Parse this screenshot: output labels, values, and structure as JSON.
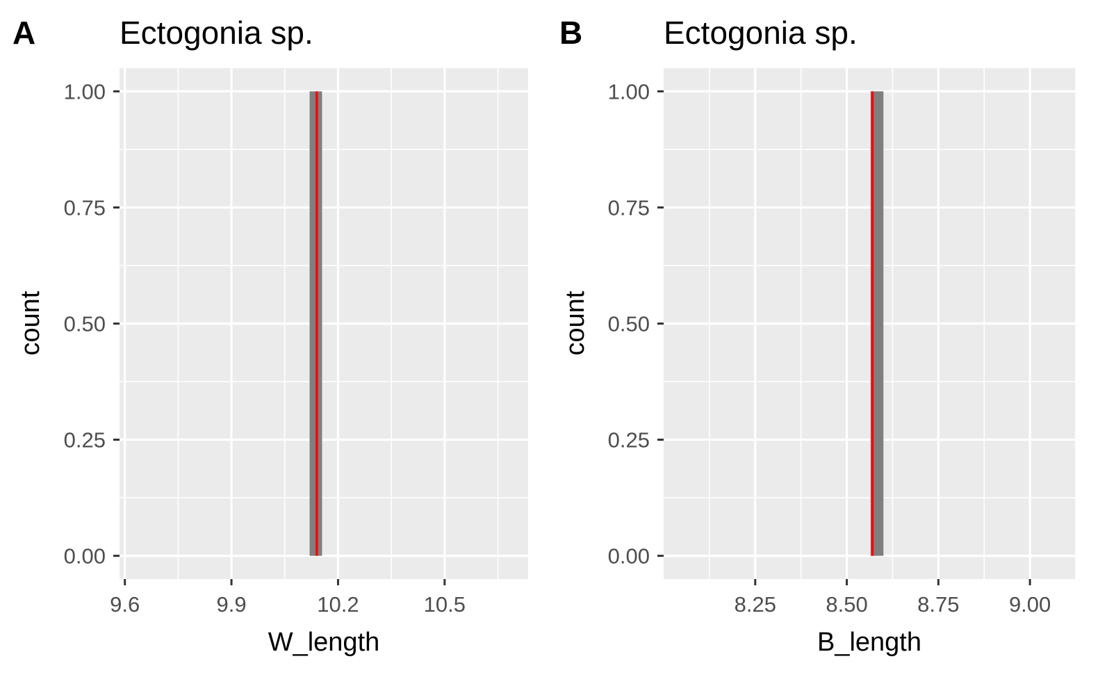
{
  "chart_data": [
    {
      "type": "bar",
      "panel": "A",
      "title": "Ectogonia sp.",
      "xlabel": "W_length",
      "ylabel": "count",
      "xlim": [
        9.585,
        10.735
      ],
      "ylim": [
        -0.05,
        1.05
      ],
      "x_ticks": [
        9.6,
        9.9,
        10.2,
        10.5
      ],
      "x_tick_labels": [
        "9.6",
        "9.9",
        "10.2",
        "10.5"
      ],
      "y_ticks": [
        0.0,
        0.25,
        0.5,
        0.75,
        1.0
      ],
      "y_tick_labels": [
        "0.00",
        "0.25",
        "0.50",
        "0.75",
        "1.00"
      ],
      "bars": [
        {
          "xmin": 10.12,
          "xmax": 10.155,
          "count": 1.0
        }
      ],
      "mean_line": {
        "x": 10.14,
        "color": "#ff0000"
      },
      "bar_color": "#7f7f7f",
      "grid": true,
      "panel_background": "#ebebeb"
    },
    {
      "type": "bar",
      "panel": "B",
      "title": "Ectogonia sp.",
      "xlabel": "B_length",
      "ylabel": "count",
      "xlim": [
        8.0,
        9.125
      ],
      "ylim": [
        -0.05,
        1.05
      ],
      "x_ticks": [
        8.25,
        8.5,
        8.75,
        9.0
      ],
      "x_tick_labels": [
        "8.25",
        "8.50",
        "8.75",
        "9.00"
      ],
      "y_ticks": [
        0.0,
        0.25,
        0.5,
        0.75,
        1.0
      ],
      "y_tick_labels": [
        "0.00",
        "0.25",
        "0.50",
        "0.75",
        "1.00"
      ],
      "bars": [
        {
          "xmin": 8.565,
          "xmax": 8.6,
          "count": 1.0
        }
      ],
      "mean_line": {
        "x": 8.57,
        "color": "#ff0000"
      },
      "bar_color": "#7f7f7f",
      "grid": true,
      "panel_background": "#ebebeb"
    }
  ]
}
